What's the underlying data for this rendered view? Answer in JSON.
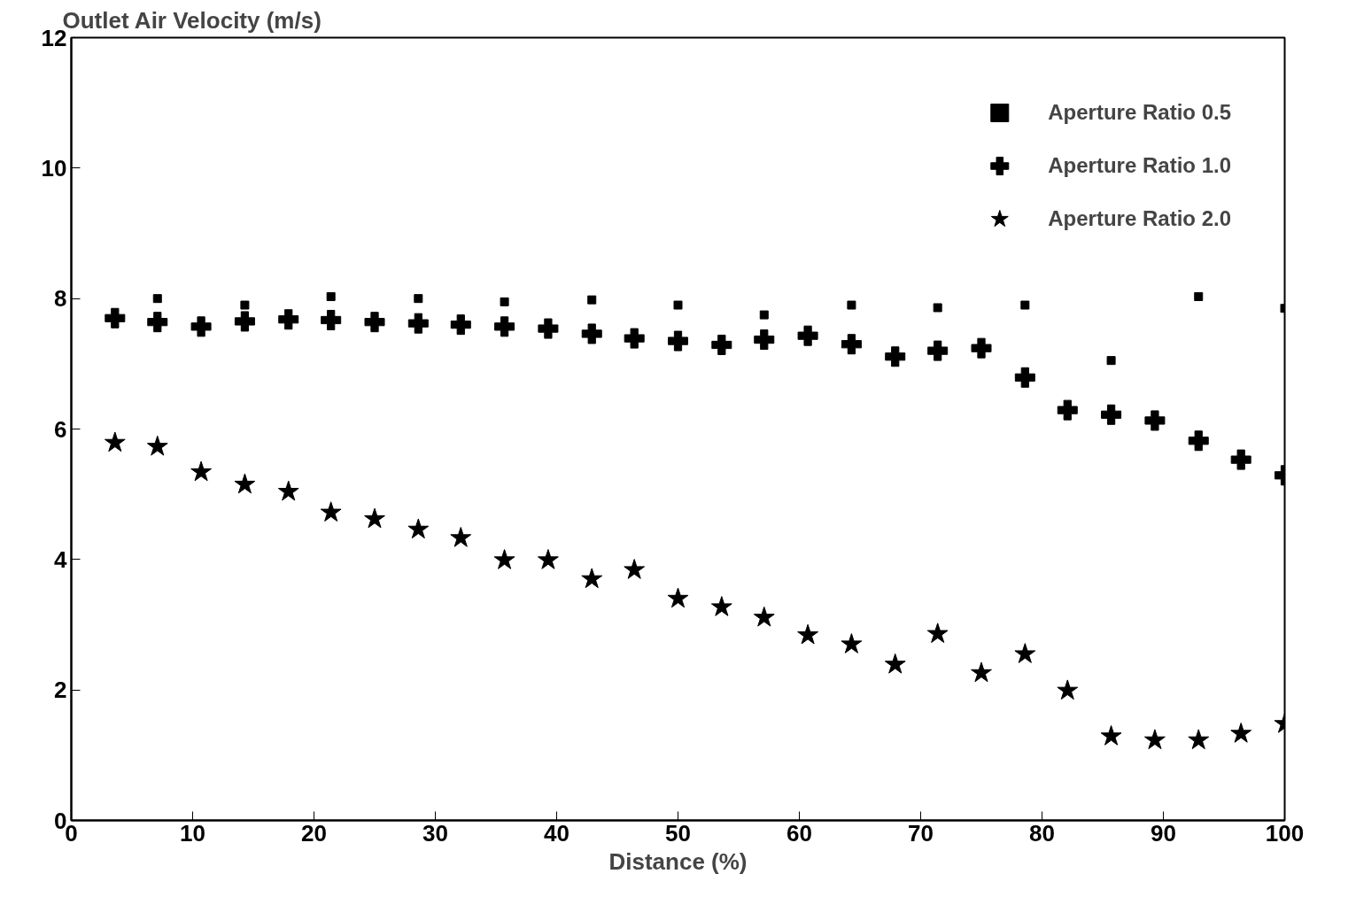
{
  "chart_data": {
    "type": "scatter",
    "ylabel": "Outlet Air Velocity (m/s)",
    "xlabel": "Distance (%)",
    "xlim": [
      0,
      100
    ],
    "xticks": [
      0,
      10,
      20,
      30,
      40,
      50,
      60,
      70,
      80,
      90,
      100
    ],
    "ylim": [
      0,
      12
    ],
    "yticks": [
      0,
      2,
      4,
      6,
      8,
      10,
      12
    ],
    "grid": false,
    "legend": "top right",
    "series": [
      {
        "name": "Aperture Ratio 0.5",
        "color": "#000000",
        "marker": "square",
        "x": [
          7.1,
          14.3,
          21.4,
          28.6,
          35.7,
          42.9,
          50.0,
          57.1,
          64.3,
          71.4,
          78.6,
          85.7,
          92.9,
          100.0
        ],
        "values": [
          8.0,
          7.9,
          8.03,
          8.0,
          7.95,
          7.98,
          7.9,
          7.75,
          7.9,
          7.86,
          7.9,
          7.05,
          8.03,
          7.85
        ]
      },
      {
        "name": "Aperture Ratio 1.0",
        "color": "#000000",
        "marker": "cross",
        "x": [
          3.6,
          7.1,
          10.7,
          14.3,
          17.9,
          21.4,
          25.0,
          28.6,
          32.1,
          35.7,
          39.3,
          42.9,
          46.4,
          50.0,
          53.6,
          57.1,
          60.7,
          64.3,
          67.9,
          71.4,
          75.0,
          78.6,
          82.1,
          85.7,
          89.3,
          92.9,
          96.4,
          100.0
        ],
        "values": [
          7.7,
          7.64,
          7.57,
          7.65,
          7.68,
          7.67,
          7.64,
          7.62,
          7.6,
          7.57,
          7.54,
          7.46,
          7.39,
          7.35,
          7.29,
          7.37,
          7.43,
          7.3,
          7.11,
          7.2,
          7.24,
          6.79,
          6.29,
          6.22,
          6.13,
          5.82,
          5.53,
          5.29
        ]
      },
      {
        "name": "Aperture Ratio 2.0",
        "color": "#000000",
        "marker": "star",
        "x": [
          3.6,
          7.1,
          10.7,
          14.3,
          17.9,
          21.4,
          25.0,
          28.6,
          32.1,
          35.7,
          39.3,
          42.9,
          46.4,
          50.0,
          53.6,
          57.1,
          60.7,
          64.3,
          67.9,
          71.4,
          75.0,
          78.6,
          82.1,
          85.7,
          89.3,
          92.9,
          96.4,
          100.0
        ],
        "values": [
          5.79,
          5.73,
          5.34,
          5.15,
          5.04,
          4.72,
          4.62,
          4.46,
          4.33,
          3.99,
          3.99,
          3.7,
          3.84,
          3.4,
          3.27,
          3.11,
          2.84,
          2.7,
          2.39,
          2.86,
          2.26,
          2.55,
          1.99,
          1.29,
          1.23,
          1.23,
          1.33,
          1.48
        ]
      }
    ]
  }
}
